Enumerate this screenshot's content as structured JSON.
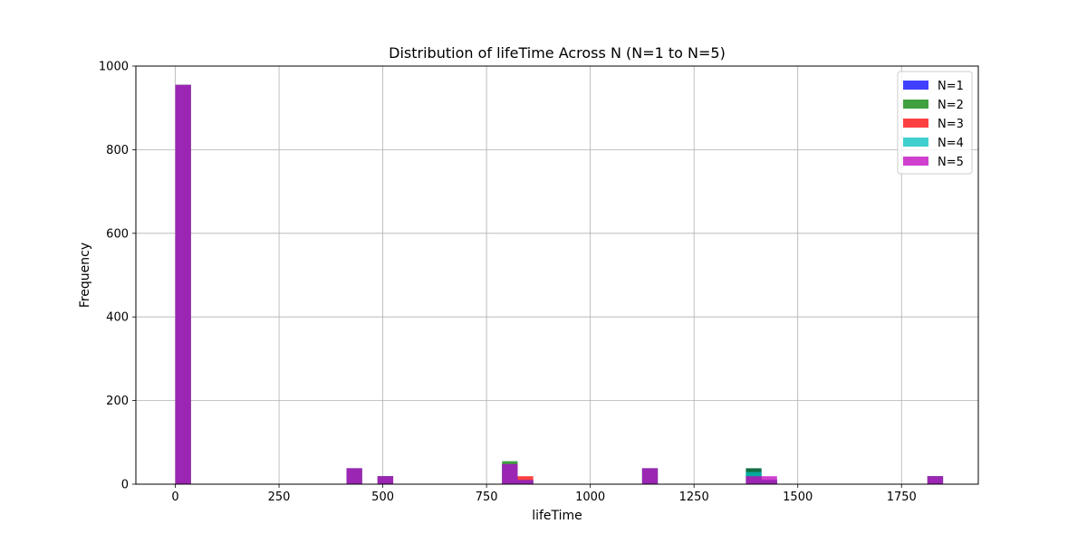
{
  "chart_data": {
    "type": "bar",
    "title": "Distribution of lifeTime Across N (N=1 to N=5)",
    "xlabel": "lifeTime",
    "ylabel": "Frequency",
    "xlim": [
      -95,
      1935
    ],
    "ylim": [
      0,
      1000
    ],
    "xticks": [
      0,
      250,
      500,
      750,
      1000,
      1250,
      1500,
      1750
    ],
    "yticks": [
      0,
      200,
      400,
      600,
      800,
      1000
    ],
    "grid": true,
    "legend_position": "top-right",
    "bin_width": 37.5,
    "series": [
      {
        "name": "N=1",
        "color": "#0000ff",
        "bins": [
          {
            "x": 0,
            "value": 955
          },
          {
            "x": 412.5,
            "value": 38
          },
          {
            "x": 487.5,
            "value": 19
          },
          {
            "x": 787.5,
            "value": 48
          },
          {
            "x": 825,
            "value": 10
          },
          {
            "x": 1125,
            "value": 38
          },
          {
            "x": 1375,
            "value": 38
          },
          {
            "x": 1412.5,
            "value": 10
          },
          {
            "x": 1812.5,
            "value": 19
          }
        ]
      },
      {
        "name": "N=2",
        "color": "#008000",
        "bins": [
          {
            "x": 0,
            "value": 955
          },
          {
            "x": 412.5,
            "value": 38
          },
          {
            "x": 487.5,
            "value": 19
          },
          {
            "x": 787.5,
            "value": 55
          },
          {
            "x": 825,
            "value": 10
          },
          {
            "x": 1125,
            "value": 38
          },
          {
            "x": 1375,
            "value": 38
          },
          {
            "x": 1412.5,
            "value": 10
          },
          {
            "x": 1812.5,
            "value": 19
          }
        ]
      },
      {
        "name": "N=3",
        "color": "#ff0000",
        "bins": [
          {
            "x": 0,
            "value": 955
          },
          {
            "x": 412.5,
            "value": 38
          },
          {
            "x": 487.5,
            "value": 19
          },
          {
            "x": 787.5,
            "value": 48
          },
          {
            "x": 825,
            "value": 19
          },
          {
            "x": 1125,
            "value": 38
          },
          {
            "x": 1375,
            "value": 19
          },
          {
            "x": 1412.5,
            "value": 10
          },
          {
            "x": 1812.5,
            "value": 19
          }
        ]
      },
      {
        "name": "N=4",
        "color": "#00bfbf",
        "bins": [
          {
            "x": 0,
            "value": 955
          },
          {
            "x": 412.5,
            "value": 38
          },
          {
            "x": 487.5,
            "value": 19
          },
          {
            "x": 787.5,
            "value": 48
          },
          {
            "x": 825,
            "value": 10
          },
          {
            "x": 1125,
            "value": 38
          },
          {
            "x": 1375,
            "value": 29
          },
          {
            "x": 1412.5,
            "value": 10
          },
          {
            "x": 1812.5,
            "value": 19
          }
        ]
      },
      {
        "name": "N=5",
        "color": "#bf00bf",
        "bins": [
          {
            "x": 0,
            "value": 955
          },
          {
            "x": 412.5,
            "value": 38
          },
          {
            "x": 487.5,
            "value": 19
          },
          {
            "x": 787.5,
            "value": 48
          },
          {
            "x": 825,
            "value": 10
          },
          {
            "x": 1125,
            "value": 38
          },
          {
            "x": 1375,
            "value": 19
          },
          {
            "x": 1412.5,
            "value": 19
          },
          {
            "x": 1812.5,
            "value": 19
          }
        ]
      }
    ]
  }
}
